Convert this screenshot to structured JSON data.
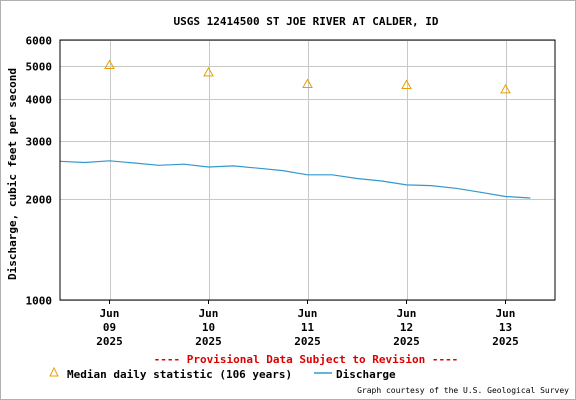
{
  "chart_data": {
    "type": "line",
    "title": "USGS 12414500 ST JOE RIVER AT CALDER, ID",
    "ylabel": "Discharge, cubic feet per second",
    "xlabel": "",
    "y_scale": "log",
    "ylim": [
      1000,
      6000
    ],
    "y_ticks": [
      {
        "value": 1000,
        "label": "1000"
      },
      {
        "value": 2000,
        "label": "2000"
      },
      {
        "value": 3000,
        "label": "3000"
      },
      {
        "value": 4000,
        "label": "4000"
      },
      {
        "value": 5000,
        "label": "5000"
      },
      {
        "value": 6000,
        "label": "6000"
      }
    ],
    "xlim": [
      "2025-06-08T12:00",
      "2025-06-13T12:00"
    ],
    "x_ticks": [
      {
        "value": "2025-06-09",
        "month": "Jun",
        "day": "09",
        "year": "2025"
      },
      {
        "value": "2025-06-10",
        "month": "Jun",
        "day": "10",
        "year": "2025"
      },
      {
        "value": "2025-06-11",
        "month": "Jun",
        "day": "11",
        "year": "2025"
      },
      {
        "value": "2025-06-12",
        "month": "Jun",
        "day": "12",
        "year": "2025"
      },
      {
        "value": "2025-06-13",
        "month": "Jun",
        "day": "13",
        "year": "2025"
      }
    ],
    "grid": true,
    "series": [
      {
        "name": "Median daily statistic (106 years)",
        "marker": "triangle",
        "color": "#e8a000",
        "points": [
          {
            "x": "2025-06-09",
            "y": 5050
          },
          {
            "x": "2025-06-10",
            "y": 4800
          },
          {
            "x": "2025-06-11",
            "y": 4430
          },
          {
            "x": "2025-06-12",
            "y": 4400
          },
          {
            "x": "2025-06-13",
            "y": 4270
          }
        ]
      },
      {
        "name": "Discharge",
        "color": "#3399cc",
        "points": [
          {
            "x": "2025-06-08T12:00",
            "y": 2600
          },
          {
            "x": "2025-06-08T18:00",
            "y": 2580
          },
          {
            "x": "2025-06-09T00:00",
            "y": 2610
          },
          {
            "x": "2025-06-09T06:00",
            "y": 2570
          },
          {
            "x": "2025-06-09T12:00",
            "y": 2530
          },
          {
            "x": "2025-06-09T18:00",
            "y": 2550
          },
          {
            "x": "2025-06-10T00:00",
            "y": 2500
          },
          {
            "x": "2025-06-10T06:00",
            "y": 2520
          },
          {
            "x": "2025-06-10T12:00",
            "y": 2480
          },
          {
            "x": "2025-06-10T18:00",
            "y": 2440
          },
          {
            "x": "2025-06-11T00:00",
            "y": 2370
          },
          {
            "x": "2025-06-11T06:00",
            "y": 2370
          },
          {
            "x": "2025-06-11T12:00",
            "y": 2310
          },
          {
            "x": "2025-06-11T18:00",
            "y": 2270
          },
          {
            "x": "2025-06-12T00:00",
            "y": 2210
          },
          {
            "x": "2025-06-12T06:00",
            "y": 2200
          },
          {
            "x": "2025-06-12T12:00",
            "y": 2160
          },
          {
            "x": "2025-06-12T18:00",
            "y": 2100
          },
          {
            "x": "2025-06-13T00:00",
            "y": 2040
          },
          {
            "x": "2025-06-13T06:00",
            "y": 2020
          }
        ]
      }
    ],
    "legend_position": "bottom",
    "annotations": [
      "---- Provisional Data Subject to Revision ----",
      "Graph courtesy of the U.S. Geological Survey"
    ]
  },
  "colors": {
    "grid": "#c8c8c8",
    "axis": "#000000",
    "provisional": "#dd0000",
    "median": "#e8a000",
    "discharge": "#3399cc"
  }
}
